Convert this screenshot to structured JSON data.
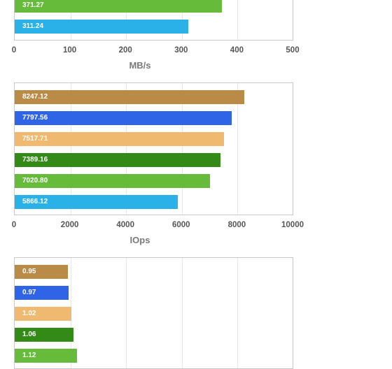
{
  "chart_data": [
    {
      "type": "bar",
      "orientation": "horizontal",
      "xlabel": "MB/s",
      "xlim": [
        0,
        500
      ],
      "ticks": [
        "0",
        "100",
        "200",
        "300",
        "400",
        "500"
      ],
      "grid": true,
      "values": [
        371.27,
        311.24
      ],
      "labels": [
        "371.27",
        "311.24"
      ],
      "colors": [
        "#66bb3a",
        "#2ab2e8"
      ]
    },
    {
      "type": "bar",
      "orientation": "horizontal",
      "xlabel": "IOps",
      "xlim": [
        0,
        10000
      ],
      "ticks": [
        "0",
        "2000",
        "4000",
        "6000",
        "8000",
        "10000"
      ],
      "grid": true,
      "values": [
        8247.12,
        7797.56,
        7517.71,
        7389.16,
        7020.8,
        5866.12
      ],
      "labels": [
        "8247.12",
        "7797.56",
        "7517.71",
        "7389.16",
        "7020.80",
        "5866.12"
      ],
      "colors": [
        "#ba8b47",
        "#3064e6",
        "#efba70",
        "#348a17",
        "#66bb3a",
        "#2ab2e8"
      ]
    },
    {
      "type": "bar",
      "orientation": "horizontal",
      "xlabel": "",
      "xlim": [
        0,
        5
      ],
      "ticks": [],
      "grid": true,
      "values": [
        0.95,
        0.97,
        1.02,
        1.06,
        1.12
      ],
      "labels": [
        "0.95",
        "0.97",
        "1.02",
        "1.06",
        "1.12"
      ],
      "colors": [
        "#ba8b47",
        "#3064e6",
        "#efba70",
        "#348a17",
        "#66bb3a"
      ]
    }
  ]
}
